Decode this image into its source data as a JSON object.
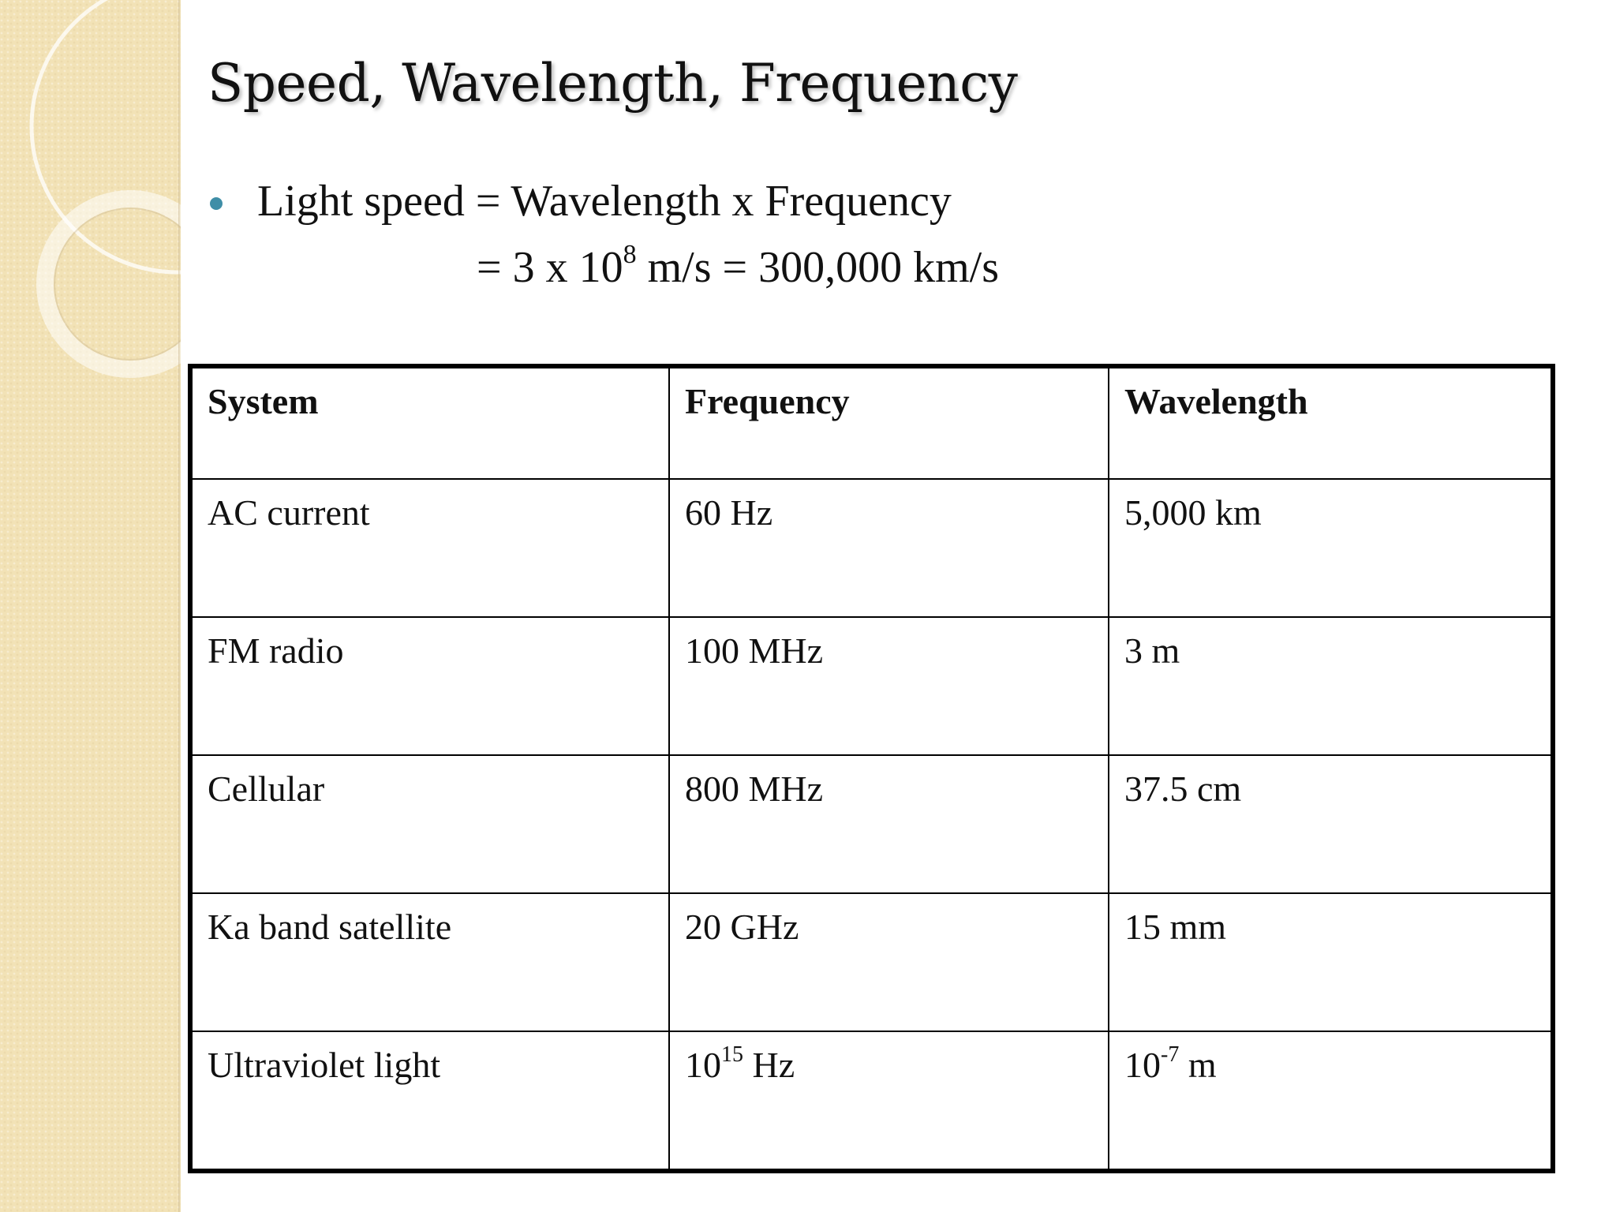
{
  "slide": {
    "title": "Speed, Wavelength, Frequency",
    "bullet": {
      "line1": "Light speed = Wavelength x Frequency",
      "line2_prefix": "= 3 x 10",
      "line2_exponent": "8",
      "line2_suffix": " m/s = 300,000 km/s"
    },
    "colors": {
      "side_panel": "#f2e2b6",
      "bullet": "#3f8ea7",
      "text": "#111111"
    }
  },
  "table": {
    "headers": [
      "System",
      "Frequency",
      "Wavelength"
    ],
    "rows": [
      {
        "system": "AC current",
        "frequency": {
          "base": "60 Hz",
          "exp": "",
          "unit": ""
        },
        "wavelength": {
          "base": "5,000 km",
          "exp": "",
          "unit": ""
        }
      },
      {
        "system": "FM radio",
        "frequency": {
          "base": "100 MHz",
          "exp": "",
          "unit": ""
        },
        "wavelength": {
          "base": "3 m",
          "exp": "",
          "unit": ""
        }
      },
      {
        "system": "Cellular",
        "frequency": {
          "base": "800 MHz",
          "exp": "",
          "unit": ""
        },
        "wavelength": {
          "base": "37.5 cm",
          "exp": "",
          "unit": ""
        }
      },
      {
        "system": "Ka band satellite",
        "frequency": {
          "base": "20 GHz",
          "exp": "",
          "unit": ""
        },
        "wavelength": {
          "base": "15 mm",
          "exp": "",
          "unit": ""
        }
      },
      {
        "system": "Ultraviolet light",
        "frequency": {
          "base": "10",
          "exp": "15",
          "unit": " Hz"
        },
        "wavelength": {
          "base": "10",
          "exp": "-7",
          "unit": " m"
        }
      }
    ]
  }
}
